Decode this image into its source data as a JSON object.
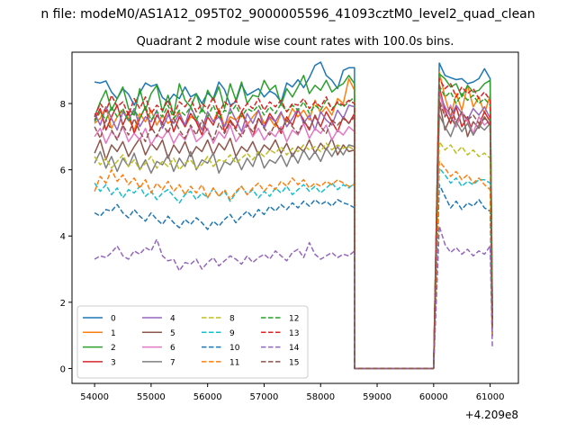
{
  "suptitle": "n file: modeM0/AS1A12_095T02_9000005596_41093cztM0_level2_quad_clean",
  "chart_data": {
    "type": "line",
    "title": "Quadrant 2 module wise count rates with 100.0s bins.",
    "xlabel": "",
    "ylabel": "",
    "x_offset_label": "+4.209e8",
    "x_ticks": [
      54000,
      55000,
      56000,
      57000,
      58000,
      59000,
      60000,
      61000
    ],
    "y_ticks": [
      0,
      2,
      4,
      6,
      8
    ],
    "xlim": [
      53600,
      61500
    ],
    "ylim": [
      -0.45,
      9.55
    ],
    "grid": false,
    "legend_position": "lower-left",
    "legend_columns": 4,
    "x_start": 54000,
    "x_step": 100,
    "gap": {
      "start_index": 46,
      "end_index": 60,
      "value": 0
    },
    "series": [
      {
        "name": "0",
        "color": "#1f77b4",
        "dash": "solid",
        "values": [
          8.65,
          8.62,
          8.68,
          8.35,
          8.15,
          8.45,
          8.28,
          7.95,
          8.32,
          8.62,
          8.52,
          8.58,
          8.18,
          8.05,
          8.28,
          8.15,
          8.5,
          8.2,
          8.3,
          8.0,
          8.32,
          8.15,
          8.65,
          8.42,
          7.95,
          8.05,
          8.58,
          8.25,
          8.35,
          8.45,
          8.2,
          8.38,
          8.28,
          8.05,
          8.62,
          8.5,
          8.72,
          8.48,
          8.78,
          9.15,
          9.25,
          8.85,
          8.7,
          8.45,
          9.0,
          9.08,
          9.08
        ],
        "after": [
          9.22,
          8.85,
          8.78,
          8.72,
          8.75,
          8.6,
          8.65,
          8.75,
          9.05,
          8.75
        ],
        "end": 1.9
      },
      {
        "name": "1",
        "color": "#ff7f0e",
        "dash": "solid",
        "values": [
          7.4,
          7.55,
          7.9,
          7.25,
          7.6,
          7.8,
          7.55,
          7.2,
          7.7,
          7.45,
          7.8,
          7.35,
          7.65,
          7.4,
          7.55,
          7.75,
          7.3,
          7.6,
          7.5,
          7.2,
          7.75,
          7.45,
          7.85,
          7.3,
          7.6,
          7.5,
          7.7,
          7.35,
          7.6,
          7.8,
          7.4,
          7.55,
          7.3,
          7.7,
          7.45,
          7.85,
          7.6,
          7.8,
          7.5,
          8.1,
          7.7,
          7.9,
          7.65,
          8.15,
          8.0,
          8.75,
          8.4
        ],
        "after": [
          8.95,
          8.2,
          7.6,
          8.3,
          7.8,
          8.55,
          7.9,
          8.2,
          7.7,
          8.25
        ],
        "end": 1.7
      },
      {
        "name": "2",
        "color": "#2ca02c",
        "dash": "solid",
        "values": [
          7.6,
          8.05,
          8.4,
          7.8,
          8.15,
          8.5,
          7.85,
          7.65,
          8.45,
          7.8,
          8.3,
          8.55,
          7.75,
          8.25,
          7.65,
          8.6,
          8.1,
          7.9,
          8.3,
          7.75,
          8.4,
          8.1,
          8.5,
          7.85,
          8.6,
          8.1,
          8.65,
          8.0,
          8.25,
          8.2,
          8.7,
          8.4,
          8.55,
          7.95,
          8.45,
          8.2,
          8.5,
          8.85,
          8.3,
          8.55,
          8.4,
          8.7,
          8.35,
          8.5,
          8.6,
          8.85,
          8.6
        ],
        "after": [
          8.9,
          8.75,
          8.5,
          8.6,
          8.2,
          8.55,
          8.35,
          8.4,
          8.6,
          8.7
        ],
        "end": 1.6
      },
      {
        "name": "3",
        "color": "#d62728",
        "dash": "solid",
        "values": [
          7.5,
          7.85,
          7.2,
          7.6,
          7.95,
          7.35,
          7.75,
          7.1,
          7.55,
          7.9,
          7.2,
          7.65,
          7.4,
          7.8,
          7.15,
          7.6,
          7.3,
          7.7,
          7.45,
          7.05,
          7.6,
          7.35,
          7.8,
          7.15,
          7.5,
          7.25,
          7.75,
          7.4,
          7.0,
          7.55,
          7.3,
          7.7,
          7.45,
          7.1,
          7.6,
          7.35,
          7.8,
          7.5,
          7.2,
          7.65,
          7.3,
          7.75,
          7.45,
          7.15,
          7.6,
          7.4,
          7.7
        ],
        "after": [
          8.5,
          7.8,
          7.4,
          7.9,
          7.3,
          7.6,
          7.05,
          7.35,
          7.75,
          7.45
        ],
        "end": 1.2
      },
      {
        "name": "4",
        "color": "#9467bd",
        "dash": "solid",
        "values": [
          7.7,
          7.35,
          7.9,
          7.55,
          7.2,
          7.75,
          7.5,
          7.85,
          7.3,
          7.6,
          7.45,
          7.8,
          7.25,
          7.65,
          7.4,
          7.7,
          7.35,
          7.9,
          7.55,
          7.2,
          7.75,
          7.45,
          7.6,
          7.3,
          7.85,
          7.5,
          7.15,
          7.7,
          7.4,
          7.8,
          7.25,
          7.6,
          7.45,
          7.75,
          7.3,
          7.55,
          7.85,
          7.4,
          7.65,
          7.2,
          7.75,
          7.5,
          7.35,
          7.8,
          7.55,
          7.95,
          7.9
        ],
        "after": [
          8.3,
          7.9,
          7.6,
          7.95,
          7.7,
          7.5,
          7.85,
          7.65,
          7.9,
          7.55
        ],
        "end": 1.5
      },
      {
        "name": "5",
        "color": "#8c564b",
        "dash": "solid",
        "values": [
          6.5,
          6.9,
          6.3,
          6.75,
          6.55,
          6.85,
          6.4,
          6.7,
          6.95,
          6.45,
          6.8,
          6.6,
          6.9,
          6.35,
          6.75,
          6.5,
          6.85,
          6.4,
          6.7,
          6.55,
          6.9,
          6.45,
          6.8,
          6.6,
          6.95,
          6.4,
          6.7,
          6.55,
          6.85,
          6.45,
          6.75,
          6.6,
          6.9,
          6.5,
          6.8,
          6.4,
          6.7,
          6.55,
          6.9,
          6.5,
          6.8,
          6.6,
          6.95,
          6.45,
          6.75,
          6.55,
          6.6
        ],
        "after": [
          8.05,
          7.2,
          7.6,
          7.3,
          7.75,
          7.0,
          7.45,
          7.25,
          7.6,
          7.35
        ],
        "end": 1.3
      },
      {
        "name": "6",
        "color": "#e377c2",
        "dash": "solid",
        "values": [
          7.0,
          7.25,
          6.8,
          7.15,
          6.95,
          7.3,
          6.85,
          7.1,
          6.9,
          7.25,
          6.75,
          7.05,
          6.95,
          7.2,
          6.8,
          7.1,
          6.9,
          7.3,
          6.85,
          7.0,
          7.25,
          6.8,
          7.15,
          6.95,
          7.35,
          6.85,
          7.1,
          7.45,
          7.0,
          7.25,
          6.9,
          7.15,
          7.0,
          7.3,
          6.85,
          7.2,
          7.05,
          7.4,
          6.95,
          7.25,
          7.1,
          7.35,
          6.9,
          7.2,
          7.05,
          7.3,
          7.15
        ],
        "after": [
          8.4,
          7.6,
          7.95,
          7.3,
          7.75,
          7.45,
          7.1,
          7.6,
          7.35,
          7.5
        ],
        "end": 1.4
      },
      {
        "name": "7",
        "color": "#7f7f7f",
        "dash": "solid",
        "values": [
          6.2,
          6.55,
          6.05,
          6.4,
          5.95,
          6.35,
          6.1,
          6.5,
          6.0,
          6.3,
          5.9,
          6.25,
          6.15,
          6.45,
          5.95,
          6.35,
          6.1,
          6.55,
          6.0,
          6.3,
          6.2,
          6.5,
          5.9,
          6.25,
          6.15,
          6.4,
          6.0,
          6.35,
          6.1,
          6.55,
          6.05,
          6.3,
          6.2,
          6.45,
          6.1,
          6.5,
          6.2,
          6.6,
          6.3,
          6.55,
          6.25,
          6.65,
          6.4,
          6.7,
          6.45,
          6.75,
          6.7
        ],
        "after": [
          7.65,
          7.3,
          7.0,
          7.45,
          7.15,
          7.4,
          7.05,
          7.35,
          7.2,
          7.4
        ],
        "end": 1.3
      },
      {
        "name": "8",
        "color": "#bcbd22",
        "dash": "dashed",
        "values": [
          6.4,
          6.15,
          6.35,
          6.05,
          6.25,
          6.45,
          6.1,
          6.3,
          6.0,
          6.2,
          6.4,
          6.05,
          6.25,
          6.1,
          6.35,
          6.0,
          6.2,
          6.3,
          6.05,
          6.15,
          6.4,
          6.1,
          6.3,
          6.25,
          6.45,
          6.2,
          6.35,
          6.5,
          6.3,
          6.55,
          6.4,
          6.6,
          6.5,
          6.7,
          6.45,
          6.65,
          6.55,
          6.75,
          6.6,
          6.7,
          6.55,
          6.8,
          6.6,
          6.75,
          6.65,
          6.7,
          6.6
        ],
        "after": [
          6.85,
          6.6,
          6.75,
          6.5,
          6.7,
          6.45,
          6.6,
          6.4,
          6.5,
          6.35
        ],
        "end": 1.1
      },
      {
        "name": "9",
        "color": "#17becf",
        "dash": "dashed",
        "values": [
          5.6,
          5.35,
          5.55,
          5.25,
          5.45,
          5.15,
          5.4,
          5.3,
          5.5,
          5.2,
          5.35,
          5.1,
          5.3,
          5.4,
          5.2,
          5.0,
          5.25,
          5.35,
          5.1,
          5.3,
          5.15,
          5.45,
          5.2,
          5.35,
          5.05,
          5.3,
          5.5,
          5.25,
          5.4,
          5.15,
          5.35,
          5.2,
          5.45,
          5.3,
          5.5,
          5.25,
          5.4,
          5.55,
          5.35,
          5.5,
          5.3,
          5.45,
          5.6,
          5.4,
          5.55,
          5.45,
          5.6
        ],
        "after": [
          6.05,
          5.85,
          5.6,
          5.75,
          5.5,
          5.65,
          5.55,
          5.7,
          5.7,
          5.6
        ],
        "end": 1.0
      },
      {
        "name": "10",
        "color": "#1f77b4",
        "dash": "dashed",
        "values": [
          4.7,
          4.6,
          4.8,
          4.75,
          4.95,
          4.7,
          4.55,
          4.8,
          4.6,
          4.45,
          4.7,
          4.5,
          4.35,
          4.6,
          4.4,
          4.25,
          4.5,
          4.35,
          4.55,
          4.4,
          4.2,
          4.45,
          4.3,
          4.5,
          4.65,
          4.4,
          4.6,
          4.75,
          4.55,
          4.8,
          4.65,
          4.9,
          4.75,
          4.95,
          4.8,
          5.0,
          4.85,
          5.05,
          4.9,
          5.1,
          4.95,
          5.05,
          4.9,
          5.1,
          5.0,
          4.95,
          4.85
        ],
        "after": [
          5.55,
          5.2,
          4.85,
          5.05,
          4.8,
          5.0,
          4.9,
          5.1,
          4.85,
          4.75
        ],
        "end": 0.9
      },
      {
        "name": "11",
        "color": "#ff7f0e",
        "dash": "dashed",
        "values": [
          5.35,
          5.8,
          5.6,
          6.0,
          5.65,
          5.85,
          5.55,
          5.75,
          5.45,
          5.7,
          5.3,
          5.6,
          5.4,
          5.65,
          5.35,
          5.55,
          5.25,
          5.5,
          5.3,
          5.55,
          5.15,
          5.45,
          5.2,
          5.4,
          5.1,
          5.35,
          5.5,
          5.25,
          5.45,
          5.6,
          5.35,
          5.55,
          5.4,
          5.65,
          5.5,
          5.75,
          5.55,
          5.7,
          5.45,
          5.6,
          5.5,
          5.65,
          5.55,
          5.7,
          5.6,
          5.5,
          5.55
        ],
        "after": [
          6.25,
          6.05,
          5.8,
          5.95,
          5.7,
          5.85,
          5.6,
          5.75,
          5.55,
          5.4
        ],
        "end": 1.0
      },
      {
        "name": "12",
        "color": "#2ca02c",
        "dash": "dashed",
        "values": [
          7.45,
          7.75,
          7.5,
          7.9,
          7.6,
          7.85,
          7.45,
          7.8,
          7.55,
          7.9,
          7.5,
          7.75,
          7.6,
          7.95,
          7.55,
          7.8,
          7.65,
          7.9,
          7.5,
          7.85,
          7.6,
          7.95,
          7.55,
          7.8,
          7.7,
          7.95,
          7.6,
          7.85,
          7.75,
          7.95,
          7.65,
          7.9,
          7.7,
          8.0,
          7.75,
          7.95,
          7.8,
          8.05,
          7.7,
          7.95,
          7.8,
          8.1,
          7.85,
          8.0,
          7.9,
          8.05,
          8.2
        ],
        "after": [
          8.55,
          8.2,
          8.35,
          8.0,
          8.3,
          8.1,
          8.25,
          8.0,
          8.15,
          7.95
        ],
        "end": 1.4
      },
      {
        "name": "13",
        "color": "#d62728",
        "dash": "dashed",
        "values": [
          7.6,
          8.0,
          7.75,
          8.25,
          7.9,
          8.05,
          7.65,
          8.15,
          7.85,
          8.2,
          7.7,
          7.95,
          7.8,
          8.1,
          7.65,
          8.05,
          7.9,
          8.15,
          7.75,
          8.0,
          7.85,
          8.2,
          7.7,
          8.05,
          7.9,
          8.1,
          7.75,
          8.0,
          7.85,
          8.15,
          7.8,
          8.05,
          7.9,
          8.1,
          7.75,
          8.0,
          7.95,
          8.15,
          7.85,
          8.05,
          7.9,
          8.2,
          7.8,
          8.05,
          7.95,
          8.1,
          8.0
        ],
        "after": [
          8.75,
          8.45,
          8.6,
          8.2,
          8.5,
          8.3,
          8.45,
          8.15,
          8.35,
          8.1
        ],
        "end": 1.5
      },
      {
        "name": "14",
        "color": "#9467bd",
        "dash": "dashed",
        "values": [
          3.3,
          3.4,
          3.35,
          3.5,
          3.7,
          3.4,
          3.3,
          3.55,
          3.45,
          3.65,
          3.55,
          3.9,
          3.4,
          3.25,
          3.3,
          2.95,
          3.2,
          3.15,
          3.3,
          3.0,
          3.2,
          3.35,
          3.1,
          3.25,
          3.4,
          3.3,
          3.15,
          3.4,
          3.2,
          3.35,
          3.45,
          3.3,
          3.55,
          3.4,
          3.25,
          3.5,
          3.6,
          3.35,
          3.8,
          3.45,
          3.3,
          3.4,
          3.5,
          3.35,
          3.45,
          3.4,
          3.55
        ],
        "after": [
          4.3,
          3.75,
          3.5,
          3.65,
          3.45,
          3.6,
          3.4,
          3.55,
          3.45,
          3.7
        ],
        "end": 0.6
      },
      {
        "name": "15",
        "color": "#8c564b",
        "dash": "dashed",
        "values": [
          7.3,
          6.95,
          7.5,
          7.2,
          6.9,
          7.35,
          7.05,
          7.55,
          7.15,
          6.85,
          7.3,
          7.0,
          7.4,
          7.1,
          7.55,
          7.2,
          6.95,
          7.35,
          7.05,
          7.5,
          7.15,
          6.9,
          7.4,
          7.1,
          7.45,
          7.2,
          7.0,
          7.35,
          7.15,
          7.55,
          7.25,
          7.05,
          7.4,
          7.2,
          7.5,
          7.3,
          7.1,
          7.45,
          7.25,
          7.6,
          7.3,
          7.1,
          7.5,
          7.35,
          7.55,
          7.4,
          7.6
        ],
        "after": [
          8.1,
          7.6,
          7.9,
          7.45,
          7.75,
          7.5,
          7.65,
          7.4,
          7.55,
          7.35
        ],
        "end": 1.2
      }
    ]
  }
}
